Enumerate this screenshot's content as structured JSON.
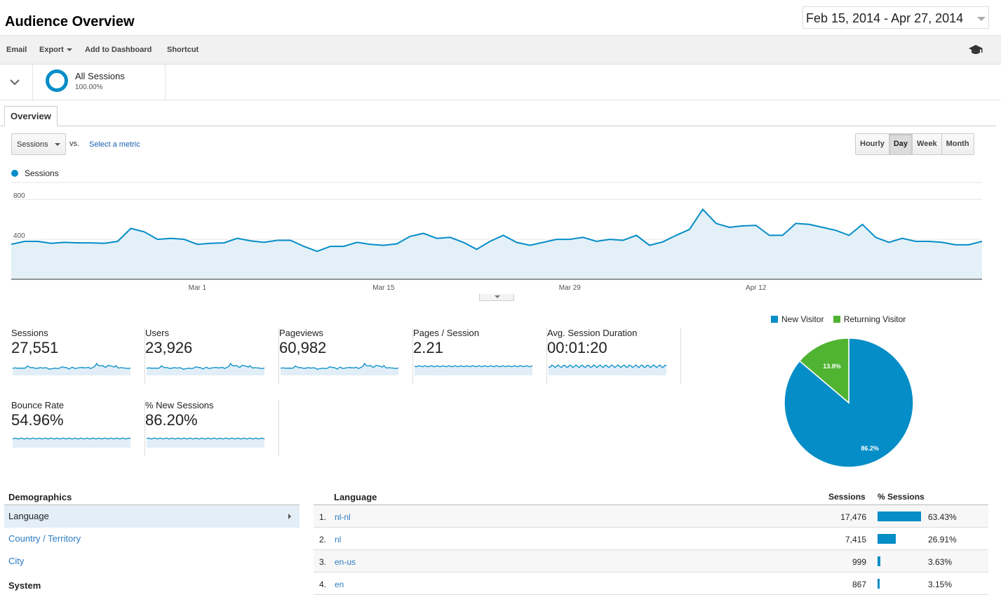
{
  "header": {
    "title": "Audience Overview",
    "date_range": "Feb 15, 2014 - Apr 27, 2014"
  },
  "toolbar": {
    "email": "Email",
    "export": "Export",
    "add_to_dashboard": "Add to Dashboard",
    "shortcut": "Shortcut"
  },
  "segment": {
    "name": "All Sessions",
    "percent": "100.00%"
  },
  "tabs": [
    {
      "label": "Overview"
    }
  ],
  "metric_selector": {
    "selected": "Sessions",
    "vs_label": "vs.",
    "select_metric_link": "Select a metric"
  },
  "granularity": {
    "options": [
      "Hourly",
      "Day",
      "Week",
      "Month"
    ],
    "selected": "Day"
  },
  "legend": {
    "series_name": "Sessions",
    "color": "#058dc7"
  },
  "chart_data": {
    "type": "area",
    "series": [
      {
        "name": "Sessions",
        "values": [
          350,
          380,
          380,
          360,
          370,
          365,
          365,
          360,
          380,
          510,
          475,
          400,
          410,
          400,
          350,
          360,
          365,
          410,
          385,
          370,
          390,
          390,
          330,
          280,
          330,
          330,
          370,
          350,
          340,
          355,
          430,
          460,
          410,
          420,
          370,
          300,
          380,
          440,
          370,
          340,
          370,
          400,
          400,
          420,
          380,
          400,
          390,
          440,
          340,
          375,
          440,
          500,
          700,
          560,
          520,
          535,
          540,
          440,
          440,
          560,
          550,
          520,
          490,
          440,
          550,
          420,
          370,
          410,
          380,
          380,
          370,
          345,
          345,
          380
        ],
        "color": "#058dc7"
      }
    ],
    "x_start": "2014-02-15",
    "x_tick_labels": [
      "Mar 1",
      "Mar 15",
      "Mar 29",
      "Apr 12"
    ],
    "y_tick_labels": [
      "800",
      "400"
    ],
    "ylim": [
      0,
      900
    ],
    "grid": true
  },
  "scorecards": [
    {
      "label": "Sessions",
      "value": "27,551"
    },
    {
      "label": "Users",
      "value": "23,926"
    },
    {
      "label": "Pageviews",
      "value": "60,982"
    },
    {
      "label": "Pages / Session",
      "value": "2.21"
    },
    {
      "label": "Avg. Session Duration",
      "value": "00:01:20"
    },
    {
      "label": "Bounce Rate",
      "value": "54.96%"
    },
    {
      "label": "% New Sessions",
      "value": "86.20%"
    }
  ],
  "pie": {
    "legend": [
      {
        "label": "New Visitor",
        "color": "#058dc7"
      },
      {
        "label": "Returning Visitor",
        "color": "#50b432"
      }
    ],
    "slices": [
      {
        "name": "New Visitor",
        "value": 86.2,
        "label": "86.2%",
        "color": "#058dc7"
      },
      {
        "name": "Returning Visitor",
        "value": 13.8,
        "label": "13.8%",
        "color": "#50b432"
      }
    ]
  },
  "demographics": {
    "heading": "Demographics",
    "items": [
      {
        "label": "Language",
        "active": true
      },
      {
        "label": "Country / Territory",
        "active": false
      },
      {
        "label": "City",
        "active": false
      }
    ],
    "system_heading": "System"
  },
  "language_table": {
    "headers": {
      "language": "Language",
      "sessions": "Sessions",
      "pct_sessions": "% Sessions"
    },
    "rows": [
      {
        "index": "1.",
        "language": "nl-nl",
        "sessions": "17,476",
        "pct": "63.43%",
        "pct_value": 63.43
      },
      {
        "index": "2.",
        "language": "nl",
        "sessions": "7,415",
        "pct": "26.91%",
        "pct_value": 26.91
      },
      {
        "index": "3.",
        "language": "en-us",
        "sessions": "999",
        "pct": "3.63%",
        "pct_value": 3.63
      },
      {
        "index": "4.",
        "language": "en",
        "sessions": "867",
        "pct": "3.15%",
        "pct_value": 3.15
      }
    ]
  }
}
